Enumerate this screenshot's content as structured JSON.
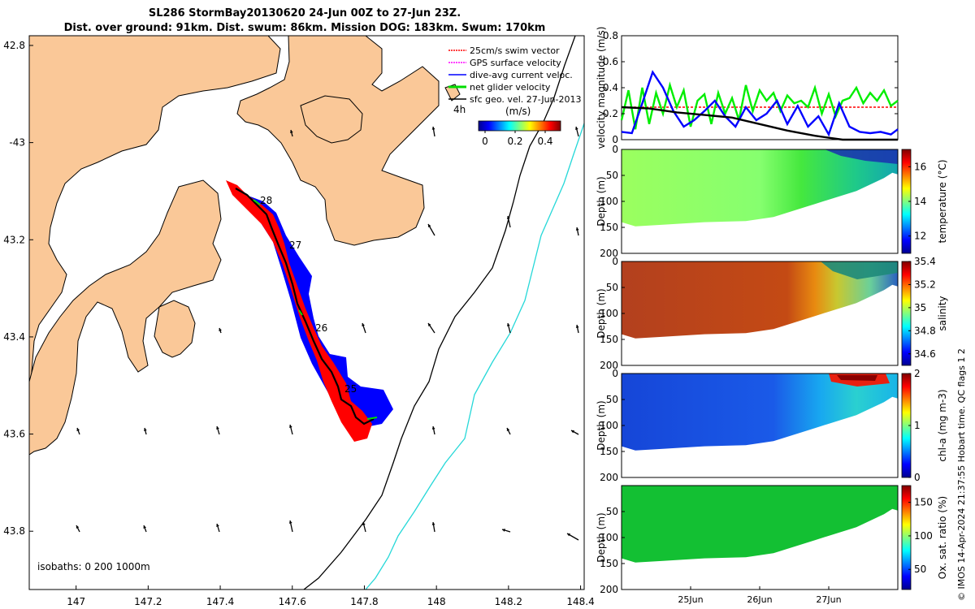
{
  "chart_data": [
    {
      "type": "map",
      "title_line1": "SL286 StormBay20130620 24-Jun 00Z to 27-Jun 23Z.",
      "title_line2": "Dist. over ground: 91km. Dist. swum: 86km. Mission DOG: 183km. Swum: 170km",
      "lon_ticks": [
        "147",
        "147.2",
        "147.4",
        "147.6",
        "147.8",
        "148",
        "148.2",
        "148.4"
      ],
      "lat_ticks": [
        "42.8",
        "-43",
        "43.2",
        "43.4",
        "43.6",
        "43.8"
      ],
      "xlim": [
        146.87,
        148.41
      ],
      "ylim": [
        -43.92,
        -42.78
      ],
      "legend": [
        {
          "label": "25cm/s swim vector",
          "color": "#ff0000"
        },
        {
          "label": "GPS surface velocity",
          "color": "#ff00ff"
        },
        {
          "label": "dive-avg current veloc.",
          "color": "#0000ff"
        },
        {
          "label": "net glider velocity",
          "color": "#00dd00"
        },
        {
          "label": "sfc geo. vel. 27-Jun-2013",
          "color": "#000000"
        }
      ],
      "interval_label": "4h",
      "colorbar": {
        "title": "(m/s)",
        "ticks": [
          "0",
          "0.2",
          "0.4"
        ],
        "range": [
          0,
          0.5
        ]
      },
      "day_labels": [
        {
          "text": "28",
          "lon": 147.52,
          "lat": -43.12
        },
        {
          "text": "27",
          "lon": 147.59,
          "lat": -43.21
        },
        {
          "text": "26",
          "lon": 147.66,
          "lat": -43.42
        },
        {
          "text": "25",
          "lon": 147.74,
          "lat": -43.53
        }
      ],
      "isobaths_label": "isobaths: 0   200  1000m",
      "track": [
        [
          147.44,
          -43.1
        ],
        [
          147.48,
          -43.13
        ],
        [
          147.52,
          -43.16
        ],
        [
          147.55,
          -43.2
        ],
        [
          147.57,
          -43.24
        ],
        [
          147.59,
          -43.28
        ],
        [
          147.62,
          -43.32
        ],
        [
          147.63,
          -43.36
        ],
        [
          147.64,
          -43.4
        ],
        [
          147.66,
          -43.44
        ],
        [
          147.69,
          -43.47
        ],
        [
          147.72,
          -43.5
        ],
        [
          147.74,
          -43.53
        ],
        [
          147.76,
          -43.56
        ],
        [
          147.8,
          -43.58
        ],
        [
          147.84,
          -43.59
        ],
        [
          147.86,
          -43.56
        ]
      ]
    },
    {
      "type": "line",
      "ylabel": "velocity magnitude (m/s)",
      "ylim": [
        0,
        0.8
      ],
      "yticks": [
        "0",
        "0.2",
        "0.4",
        "0.6",
        "0.8"
      ],
      "x_day_range": [
        24.0,
        28.0
      ],
      "series": [
        {
          "name": "swim",
          "color": "#ff0000",
          "x": [
            24.0,
            28.0
          ],
          "y": [
            0.25,
            0.25
          ]
        },
        {
          "name": "net glider velocity",
          "color": "#00ee00",
          "x": [
            24.0,
            24.1,
            24.2,
            24.3,
            24.4,
            24.5,
            24.6,
            24.7,
            24.8,
            24.9,
            25.0,
            25.1,
            25.2,
            25.3,
            25.4,
            25.5,
            25.6,
            25.7,
            25.8,
            25.9,
            26.0,
            26.1,
            26.2,
            26.3,
            26.4,
            26.5,
            26.6,
            26.7,
            26.8,
            26.9,
            27.0,
            27.1,
            27.2,
            27.3,
            27.4,
            27.5,
            27.6,
            27.7,
            27.8,
            27.9,
            28.0
          ],
          "y": [
            0.15,
            0.38,
            0.08,
            0.4,
            0.12,
            0.36,
            0.2,
            0.42,
            0.25,
            0.38,
            0.1,
            0.3,
            0.35,
            0.12,
            0.36,
            0.2,
            0.32,
            0.15,
            0.42,
            0.22,
            0.38,
            0.3,
            0.36,
            0.22,
            0.34,
            0.28,
            0.3,
            0.25,
            0.4,
            0.2,
            0.35,
            0.18,
            0.3,
            0.32,
            0.4,
            0.28,
            0.36,
            0.3,
            0.38,
            0.26,
            0.3
          ]
        },
        {
          "name": "dive-avg current veloc.",
          "color": "#0000ff",
          "x": [
            24.0,
            24.15,
            24.3,
            24.45,
            24.6,
            24.75,
            24.9,
            25.05,
            25.2,
            25.35,
            25.5,
            25.65,
            25.8,
            25.95,
            26.1,
            26.25,
            26.4,
            26.55,
            26.7,
            26.85,
            27.0,
            27.15,
            27.3,
            27.45,
            27.6,
            27.75,
            27.9,
            28.0
          ],
          "y": [
            0.06,
            0.05,
            0.28,
            0.52,
            0.4,
            0.22,
            0.1,
            0.15,
            0.22,
            0.3,
            0.18,
            0.1,
            0.25,
            0.15,
            0.2,
            0.3,
            0.12,
            0.26,
            0.1,
            0.18,
            0.04,
            0.28,
            0.1,
            0.06,
            0.05,
            0.06,
            0.04,
            0.08
          ]
        },
        {
          "name": "surface geostrophic",
          "color": "#000000",
          "x": [
            24.0,
            24.4,
            24.8,
            25.2,
            25.6,
            26.0,
            26.4,
            26.8,
            27.2,
            27.6,
            28.0
          ],
          "y": [
            0.25,
            0.24,
            0.21,
            0.19,
            0.17,
            0.12,
            0.07,
            0.03,
            0.0,
            0.0,
            0.0
          ]
        }
      ]
    },
    {
      "type": "section",
      "variable": "temperature",
      "ylabel": "Depth (m)",
      "clabel": "temperature (°C)",
      "yticks": [
        "0",
        "50",
        "100",
        "150",
        "200"
      ],
      "ylim": [
        0,
        200
      ],
      "cticks": [
        "12",
        "14",
        "16"
      ],
      "crange": [
        11,
        17
      ]
    },
    {
      "type": "section",
      "variable": "salinity",
      "ylabel": "Depth (m)",
      "clabel": "salinity",
      "yticks": [
        "0",
        "50",
        "100",
        "150",
        "200"
      ],
      "ylim": [
        0,
        200
      ],
      "cticks": [
        "34.6",
        "34.8",
        "35",
        "35.2",
        "35.4"
      ],
      "crange": [
        34.5,
        35.4
      ]
    },
    {
      "type": "section",
      "variable": "chl-a",
      "ylabel": "Depth (m)",
      "clabel": "chl-a (mg m-3)",
      "yticks": [
        "0",
        "50",
        "100",
        "150",
        "200"
      ],
      "ylim": [
        0,
        200
      ],
      "cticks": [
        "0",
        "1",
        "2"
      ],
      "crange": [
        0,
        2
      ]
    },
    {
      "type": "section",
      "variable": "oxygen",
      "ylabel": "Depth (m)",
      "clabel": "Ox. sat. ratio (%)",
      "yticks": [
        "50",
        "100",
        "150",
        "200"
      ],
      "ylim": [
        0,
        200
      ],
      "cticks": [
        "50",
        "100",
        "150"
      ],
      "crange": [
        20,
        175
      ],
      "xtick_labels": [
        "25Jun",
        "26Jun",
        "27Jun"
      ]
    }
  ],
  "side_note": "© IMOS 14-Apr-2024 21:37:55 Hobart time. QC flags 1  2"
}
